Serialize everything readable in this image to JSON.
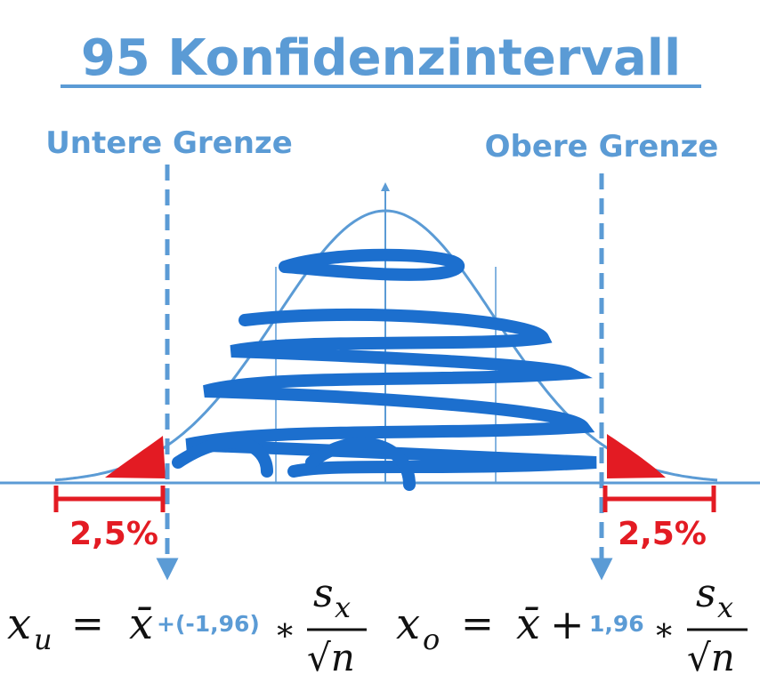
{
  "title": "95 Konfidenzintervall",
  "labels": {
    "lower": "Untere Grenze",
    "upper": "Obere Grenze"
  },
  "tails": {
    "left": "2,5%",
    "right": "2,5%"
  },
  "formulas": {
    "lower": {
      "var": "x",
      "sub": "u",
      "eq": "=",
      "mean": "x̄",
      "factor": "+(-1,96)",
      "times": "∗",
      "num": "s",
      "num_sub": "x",
      "den": "√n"
    },
    "upper": {
      "var": "x",
      "sub": "o",
      "eq": "=",
      "mean": "x̄",
      "plus": "+",
      "factor": "1,96",
      "times": "∗",
      "num": "s",
      "num_sub": "x",
      "den": "√n"
    }
  }
}
